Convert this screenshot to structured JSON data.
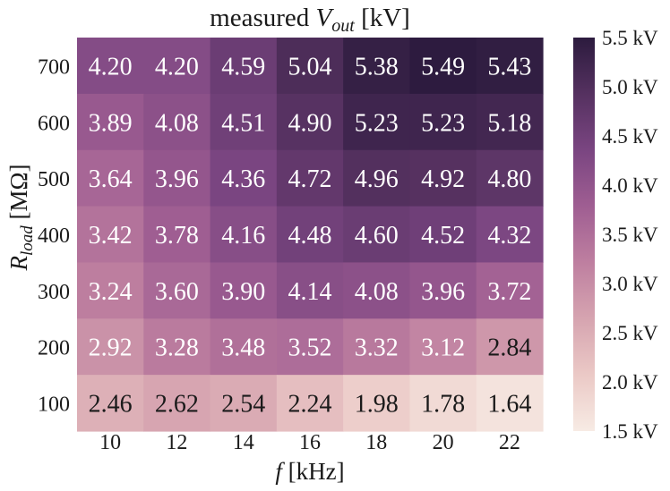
{
  "chart_data": {
    "type": "heatmap",
    "title_prefix": "measured ",
    "title_var": "V",
    "title_sub": "out",
    "title_suffix": " [kV]",
    "xlabel_var": "f",
    "xlabel_unit": " [kHz]",
    "ylabel_var": "R",
    "ylabel_sub": "load",
    "ylabel_unit": " [MΩ]",
    "x": [
      "10",
      "12",
      "14",
      "16",
      "18",
      "20",
      "22"
    ],
    "y": [
      "700",
      "600",
      "500",
      "400",
      "300",
      "200",
      "100"
    ],
    "values": [
      [
        "4.20",
        "4.20",
        "4.59",
        "5.04",
        "5.38",
        "5.49",
        "5.43"
      ],
      [
        "3.89",
        "4.08",
        "4.51",
        "4.90",
        "5.23",
        "5.23",
        "5.18"
      ],
      [
        "3.64",
        "3.96",
        "4.36",
        "4.72",
        "4.96",
        "4.92",
        "4.80"
      ],
      [
        "3.42",
        "3.78",
        "4.16",
        "4.48",
        "4.60",
        "4.52",
        "4.32"
      ],
      [
        "3.24",
        "3.60",
        "3.90",
        "4.14",
        "4.08",
        "3.96",
        "3.72"
      ],
      [
        "2.92",
        "3.28",
        "3.48",
        "3.52",
        "3.32",
        "3.12",
        "2.84"
      ],
      [
        "2.46",
        "2.62",
        "2.54",
        "2.24",
        "1.98",
        "1.78",
        "1.64"
      ]
    ],
    "colorbar": {
      "min": 1.5,
      "max": 5.5,
      "ticks": [
        "5.5 kV",
        "5.0 kV",
        "4.5 kV",
        "4.0 kV",
        "3.5 kV",
        "3.0 kV",
        "2.5 kV",
        "2.0 kV",
        "1.5 kV"
      ],
      "tick_values": [
        5.5,
        5.0,
        4.5,
        4.0,
        3.5,
        3.0,
        2.5,
        2.0,
        1.5
      ]
    },
    "colormap": [
      "#f7ebe4",
      "#ebc9c6",
      "#d6a4b0",
      "#be7fa0",
      "#9f5e92",
      "#7a4581",
      "#553160",
      "#2c1b3e"
    ],
    "text_dark": "#1a1a1a",
    "text_light": "#ffffff"
  }
}
